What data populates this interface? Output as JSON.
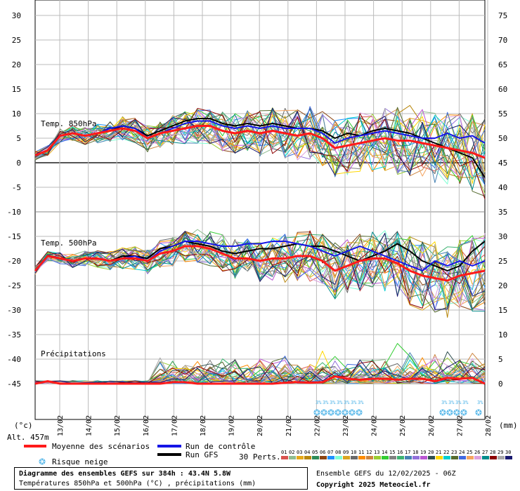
{
  "chart_data": {
    "type": "line",
    "title": "Diagramme des ensembles GEFS sur 384h : 43.4N 5.8W",
    "subtitle": "Températures 850hPa et 500hPa (°C) , précipitations (mm)",
    "left_axis_label": "(°c)",
    "right_axis_label": "(mm)",
    "altitude": "Alt. 457m",
    "left_ticks": [
      30,
      25,
      20,
      15,
      10,
      5,
      0,
      -5,
      -10,
      -15,
      -20,
      -25,
      -30,
      -35,
      -40,
      -45
    ],
    "right_ticks": [
      75,
      70,
      65,
      60,
      55,
      50,
      45,
      40,
      35,
      30,
      25,
      20,
      15,
      10,
      5,
      0
    ],
    "x_ticks": [
      "13/02",
      "14/02",
      "15/02",
      "16/02",
      "17/02",
      "18/02",
      "19/02",
      "20/02",
      "21/02",
      "22/02",
      "23/02",
      "24/02",
      "25/02",
      "26/02",
      "27/02",
      "28/02"
    ],
    "panel_labels": [
      "Temp. 850hPa",
      "Temp. 500hPa",
      "Précipitations"
    ],
    "t850_mean": [
      1.5,
      2.5,
      5.5,
      6,
      5.5,
      6,
      6.5,
      7,
      6.5,
      5,
      6,
      6.5,
      7,
      7.5,
      7.5,
      6.5,
      6,
      6.5,
      6,
      6.5,
      6,
      5.5,
      6,
      5,
      3,
      3.5,
      4,
      4.5,
      5,
      4.5,
      4.5,
      4,
      3.5,
      3,
      2.5,
      2,
      1
    ],
    "t850_control": [
      1.5,
      2.5,
      5.5,
      6,
      5.5,
      6,
      7,
      7.5,
      7,
      5,
      6,
      7,
      8,
      8.5,
      8.5,
      7.5,
      7,
      7.5,
      7,
      7.5,
      7,
      7,
      7,
      6,
      4,
      5,
      5.5,
      6,
      6.5,
      6,
      5.5,
      5,
      5,
      6,
      5,
      5.5,
      4
    ],
    "t850_gfs": [
      1.5,
      2.5,
      5.5,
      6,
      5.5,
      6,
      6.5,
      7.5,
      7,
      5.5,
      6.5,
      7.5,
      8.5,
      9,
      9,
      8,
      7.5,
      8,
      7.5,
      8,
      7.5,
      7,
      7,
      6.5,
      5,
      6,
      5.5,
      6.5,
      7,
      6.5,
      6,
      5,
      4,
      3,
      2,
      1,
      -3
    ],
    "t500_mean": [
      -22,
      -19,
      -19.5,
      -20,
      -19.5,
      -19.5,
      -20,
      -19.5,
      -19.5,
      -20,
      -18.5,
      -18,
      -17,
      -17,
      -17.5,
      -18.5,
      -19.5,
      -19.5,
      -20,
      -19.5,
      -19.5,
      -19,
      -19,
      -20,
      -22,
      -21,
      -20,
      -19.5,
      -19.5,
      -20.5,
      -22,
      -23,
      -23.5,
      -24,
      -23,
      -22.5,
      -22
    ],
    "t500_control": [
      -22,
      -19,
      -19.5,
      -20,
      -19.5,
      -19.5,
      -20,
      -19.5,
      -19,
      -20,
      -18,
      -17,
      -16,
      -16,
      -16.5,
      -17,
      -17,
      -16.5,
      -16.5,
      -16,
      -16,
      -16.5,
      -17,
      -18,
      -19,
      -18,
      -17,
      -18,
      -19,
      -20,
      -21,
      -22,
      -20,
      -21,
      -20,
      -21,
      -20
    ],
    "t500_gfs": [
      -22,
      -19,
      -19.5,
      -20,
      -19.5,
      -19.5,
      -20,
      -19,
      -19,
      -19.5,
      -17.5,
      -17,
      -16,
      -16.5,
      -17,
      -18,
      -18.5,
      -18,
      -17.5,
      -17.5,
      -17,
      -16.5,
      -17,
      -17,
      -18,
      -19,
      -20,
      -19,
      -18,
      -16.5,
      -18,
      -20,
      -21,
      -22,
      -21,
      -18,
      -16
    ],
    "precip_mean": [
      0,
      0.5,
      0,
      0,
      0,
      0,
      0,
      0,
      0,
      0,
      0,
      0.3,
      0.3,
      0,
      0,
      0,
      0,
      0,
      0,
      0,
      0.2,
      0.3,
      0.2,
      0.3,
      1.5,
      1,
      0.8,
      1,
      1,
      0.8,
      1,
      1,
      0.5,
      1.2,
      1,
      1.2,
      0
    ],
    "legend": {
      "mean": "Moyenne des scénarios",
      "control": "Run de contrôle",
      "gfs": "Run GFS",
      "snow": "Risque neige",
      "perts_label": "30 Perts."
    },
    "pert_numbers": [
      "01",
      "02",
      "03",
      "04",
      "05",
      "06",
      "07",
      "08",
      "09",
      "10",
      "11",
      "12",
      "13",
      "14",
      "15",
      "16",
      "17",
      "18",
      "19",
      "20",
      "21",
      "22",
      "23",
      "24",
      "25",
      "26",
      "27",
      "28",
      "29",
      "30"
    ],
    "pert_colors": [
      "#d9534f",
      "#8fbc8f",
      "#e6a817",
      "#b8860b",
      "#2e8b57",
      "#8b4513",
      "#1e90ff",
      "#7fffd4",
      "#daa520",
      "#696969",
      "#ff8c00",
      "#cd853f",
      "#9acd32",
      "#32cd32",
      "#808080",
      "#3cb371",
      "#4682b4",
      "#9370db",
      "#ba55d3",
      "#2f4f4f",
      "#ffd700",
      "#00ced1",
      "#556b2f",
      "#4169e1",
      "#f4a460",
      "#dda0dd",
      "#008b8b",
      "#8b0000",
      "#a9a9a9",
      "#191970"
    ],
    "colors": {
      "mean": "#ff1a1a",
      "control": "#1515e6",
      "gfs": "#000000",
      "snow": "#4fb4e8"
    },
    "snow_dates": [
      "22/02",
      "23/02",
      "24/02",
      "27/02",
      "28/02"
    ]
  },
  "footer": {
    "title": "Diagramme des ensembles GEFS sur 384h : 43.4N 5.8W",
    "subtitle": "Températures 850hPa et 500hPa (°C) , précipitations (mm)",
    "run_info": "Ensemble GEFS du 12/02/2025 - 06Z",
    "copyright": "Copyright 2025 Meteociel.fr"
  }
}
